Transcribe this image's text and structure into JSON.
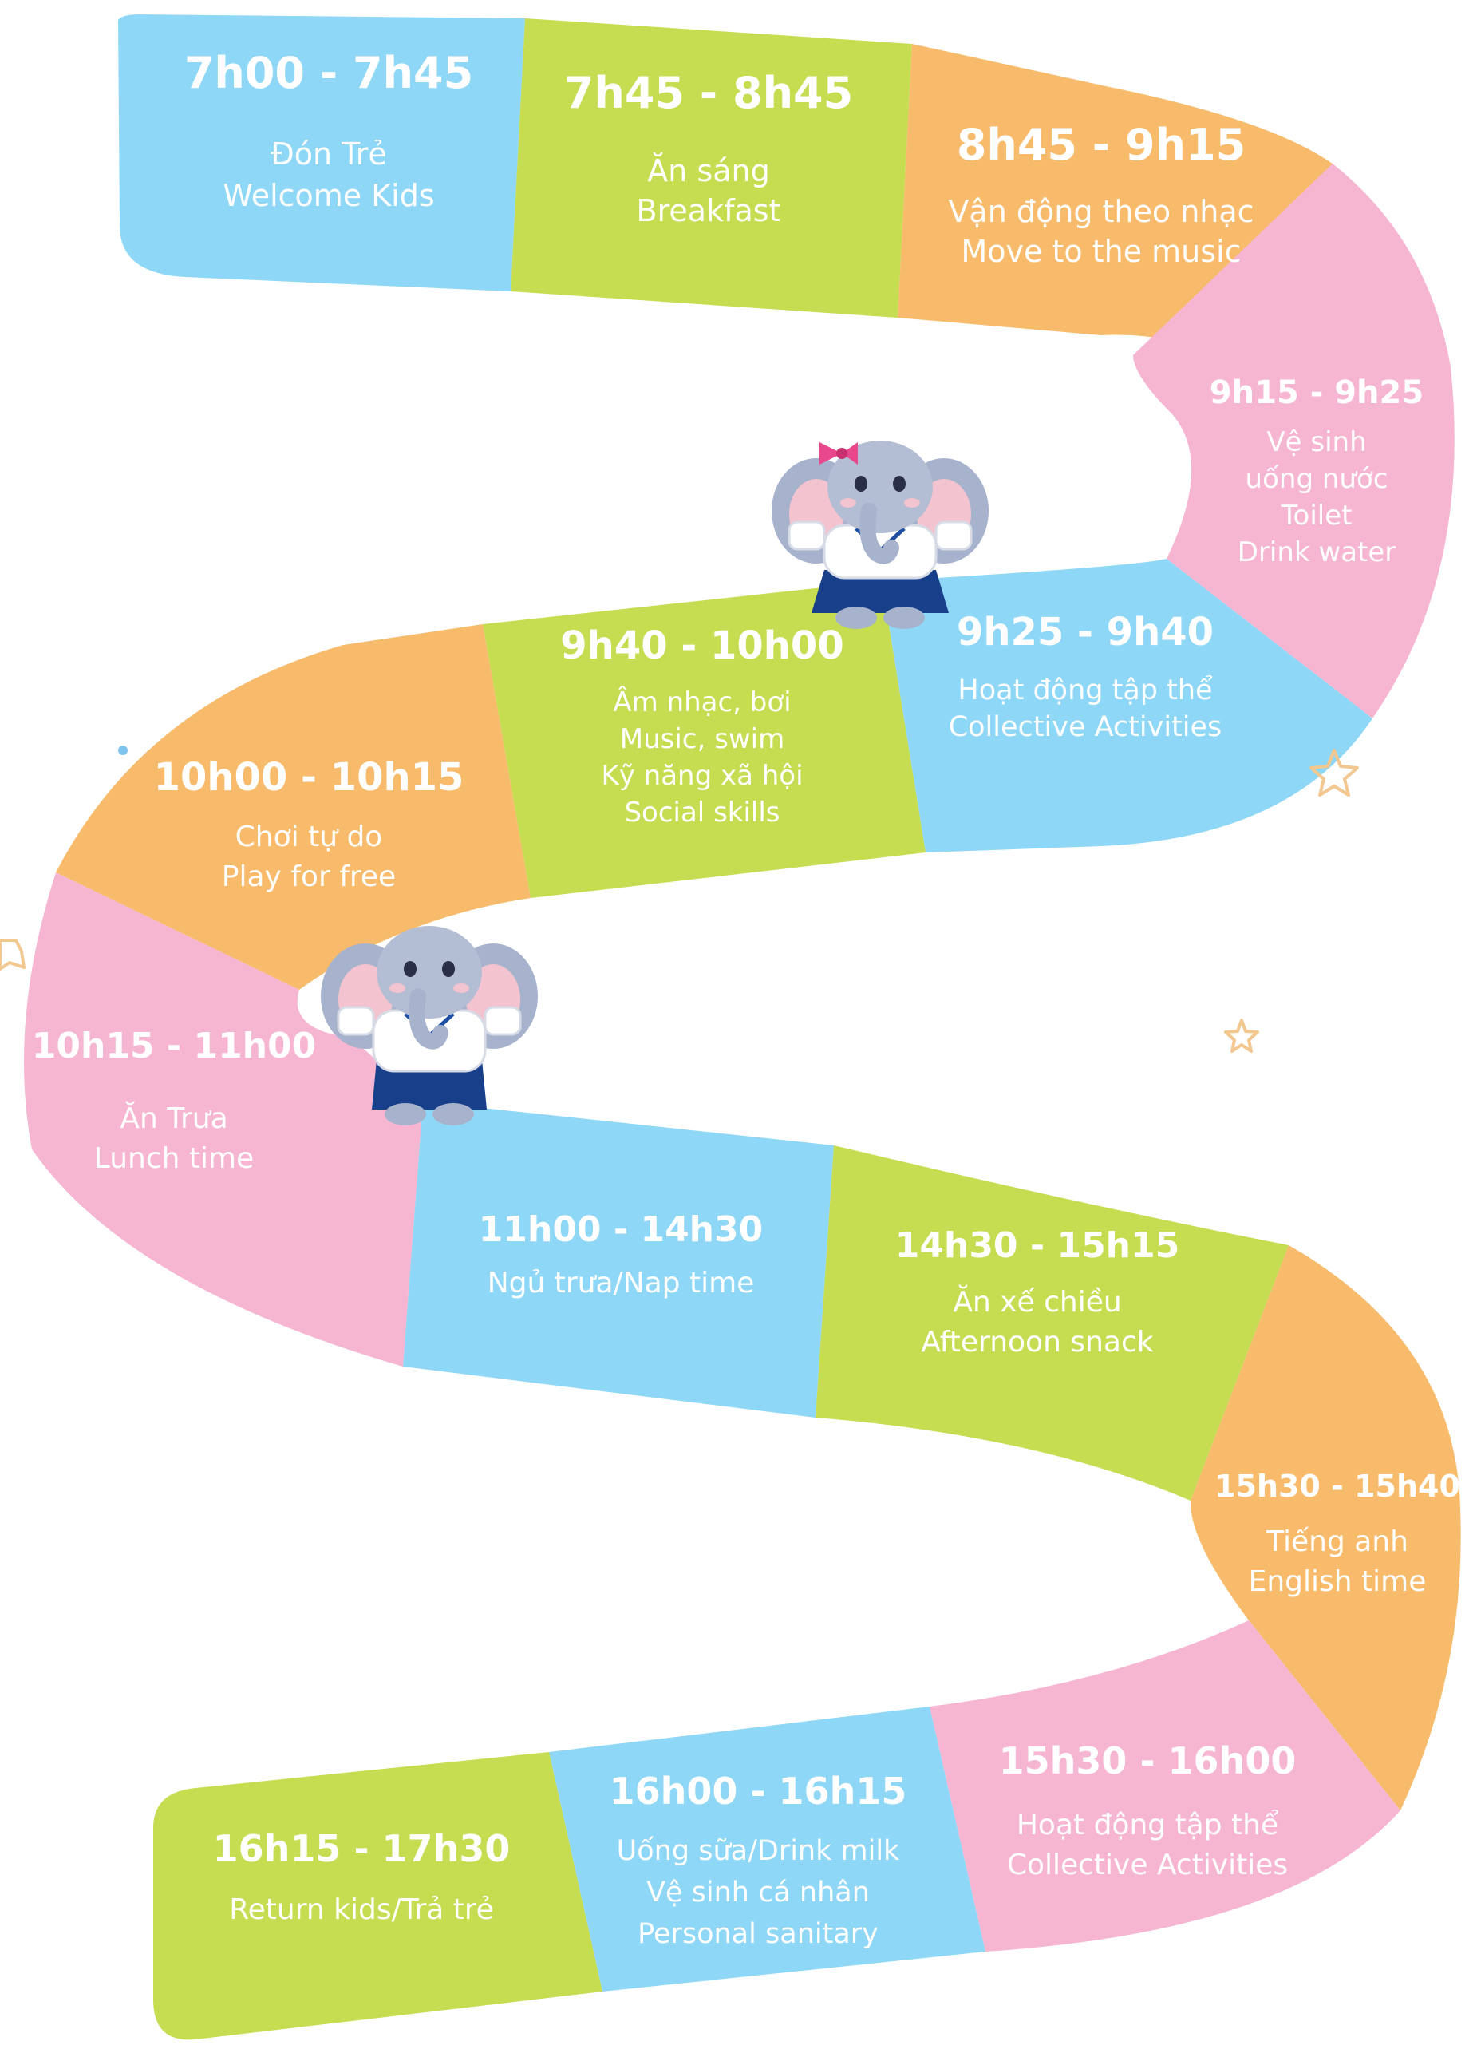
{
  "colors": {
    "blue": "#8fd7f6",
    "green": "#c6dd52",
    "orange": "#f7bb6b",
    "pink": "#f6b6d2",
    "text": "#ffffff",
    "star": "#f2c890",
    "dot": "#7fc4ee"
  },
  "segments": [
    {
      "time": "7h00 - 7h45",
      "lines": [
        "Đón Trẻ",
        "Welcome Kids"
      ],
      "color": "blue"
    },
    {
      "time": "7h45 - 8h45",
      "lines": [
        "Ăn sáng",
        "Breakfast"
      ],
      "color": "green"
    },
    {
      "time": "8h45 - 9h15",
      "lines": [
        "Vận động theo nhạc",
        "Move to the music"
      ],
      "color": "orange"
    },
    {
      "time": "9h15 - 9h25",
      "lines": [
        "Vệ sinh",
        "uống nước",
        "Toilet",
        "Drink water"
      ],
      "color": "pink"
    },
    {
      "time": "9h25 - 9h40",
      "lines": [
        "Hoạt động tập thể",
        "Collective Activities"
      ],
      "color": "blue"
    },
    {
      "time": "9h40 - 10h00",
      "lines": [
        "Âm nhạc, bơi",
        "Music, swim",
        "Kỹ năng xã hội",
        "Social skills"
      ],
      "color": "green"
    },
    {
      "time": "10h00 - 10h15",
      "lines": [
        "Chơi tự do",
        "Play for free"
      ],
      "color": "orange"
    },
    {
      "time": "10h15 - 11h00",
      "lines": [
        "Ăn Trưa",
        "Lunch time"
      ],
      "color": "pink"
    },
    {
      "time": "11h00 - 14h30",
      "lines": [
        "Ngủ trưa/Nap time"
      ],
      "color": "blue"
    },
    {
      "time": "14h30 - 15h15",
      "lines": [
        "Ăn xế chiều",
        "Afternoon snack"
      ],
      "color": "green"
    },
    {
      "time": "15h30 - 15h40",
      "lines": [
        "Tiếng anh",
        "English time"
      ],
      "color": "orange"
    },
    {
      "time": "15h30 - 16h00",
      "lines": [
        "Hoạt động tập thể",
        "Collective Activities"
      ],
      "color": "pink"
    },
    {
      "time": "16h00 - 16h15",
      "lines": [
        "Uống sữa/Drink milk",
        "Vệ sinh cá nhân",
        "Personal sanitary"
      ],
      "color": "blue"
    },
    {
      "time": "16h15 - 17h30",
      "lines": [
        "Return kids/Trả trẻ"
      ],
      "color": "green"
    }
  ],
  "mascots": [
    {
      "icon": "elephant-girl-mascot-icon"
    },
    {
      "icon": "elephant-boy-mascot-icon"
    }
  ]
}
